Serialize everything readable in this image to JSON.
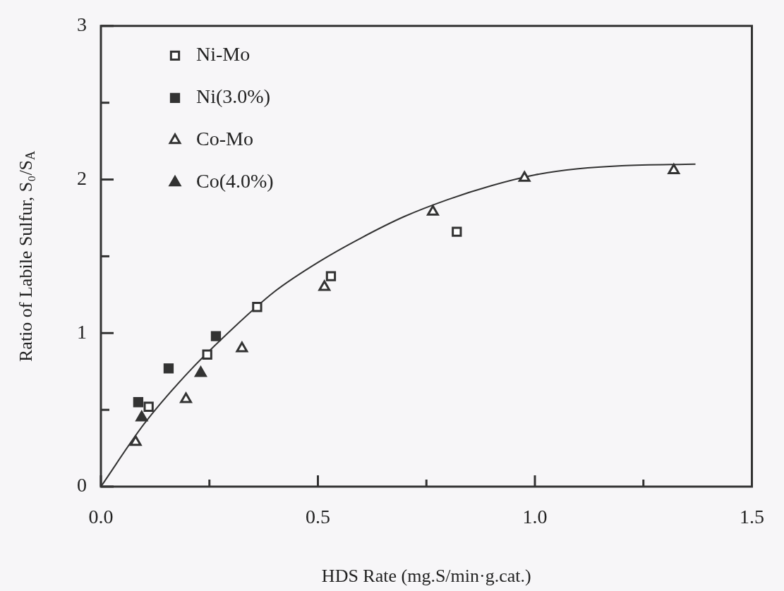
{
  "chart_data": {
    "type": "scatter",
    "xlabel": "HDS Rate (mg.S/min·g.cat.)",
    "ylabel": "Ratio of Labile Sulfur, S₀/S$_{A}$",
    "xlim": [
      0,
      1.5
    ],
    "xticks": [
      {
        "value": 0,
        "label": "0.0"
      },
      {
        "value": 0.25,
        "label": null
      },
      {
        "value": 0.5,
        "label": "0.5"
      },
      {
        "value": 0.75,
        "label": null
      },
      {
        "value": 1,
        "label": "1.0"
      },
      {
        "value": 1.25,
        "label": null
      },
      {
        "value": 1.5,
        "label": "1.5"
      }
    ],
    "ylim": [
      0,
      3
    ],
    "yticks": [
      0,
      {
        "value": 0.5,
        "label": null
      },
      1,
      {
        "value": 1.5,
        "label": null
      },
      2,
      {
        "value": 2.5,
        "label": null
      },
      3
    ],
    "grid": false,
    "legend": "top left",
    "series": [
      {
        "name": "Ni-Mo",
        "color": "#ffffff",
        "marker": "square",
        "x": [
          0.11,
          0.245,
          0.36,
          0.53,
          0.82
        ],
        "values": [
          0.52,
          0.86,
          1.17,
          1.37,
          1.66
        ]
      },
      {
        "name": "Ni(3.0%)",
        "color": "#333333",
        "marker": "square",
        "x": [
          0.086,
          0.156,
          0.265
        ],
        "values": [
          0.55,
          0.77,
          0.98
        ]
      },
      {
        "name": "Co-Mo",
        "color": "#ffffff",
        "marker": "triangle",
        "x": [
          0.08,
          0.196,
          0.325,
          0.515,
          0.765,
          0.976,
          1.32
        ],
        "values": [
          0.29,
          0.57,
          0.9,
          1.3,
          1.79,
          2.01,
          2.06
        ]
      },
      {
        "name": "Co(4.0%)",
        "color": "#333333",
        "marker": "triangle",
        "x": [
          0.094,
          0.23
        ],
        "values": [
          0.45,
          0.74
        ]
      },
      {
        "type": "line",
        "color": "#333333",
        "marker": "none",
        "line_style": "solid",
        "x": [
          0,
          0.1,
          0.2,
          0.3,
          0.4,
          0.5,
          0.6,
          0.7,
          0.8,
          0.9,
          1.0,
          1.1,
          1.2,
          1.37
        ],
        "values": [
          0,
          0.41,
          0.74,
          1.02,
          1.27,
          1.46,
          1.62,
          1.76,
          1.87,
          1.96,
          2.03,
          2.07,
          2.09,
          2.1
        ]
      }
    ]
  }
}
